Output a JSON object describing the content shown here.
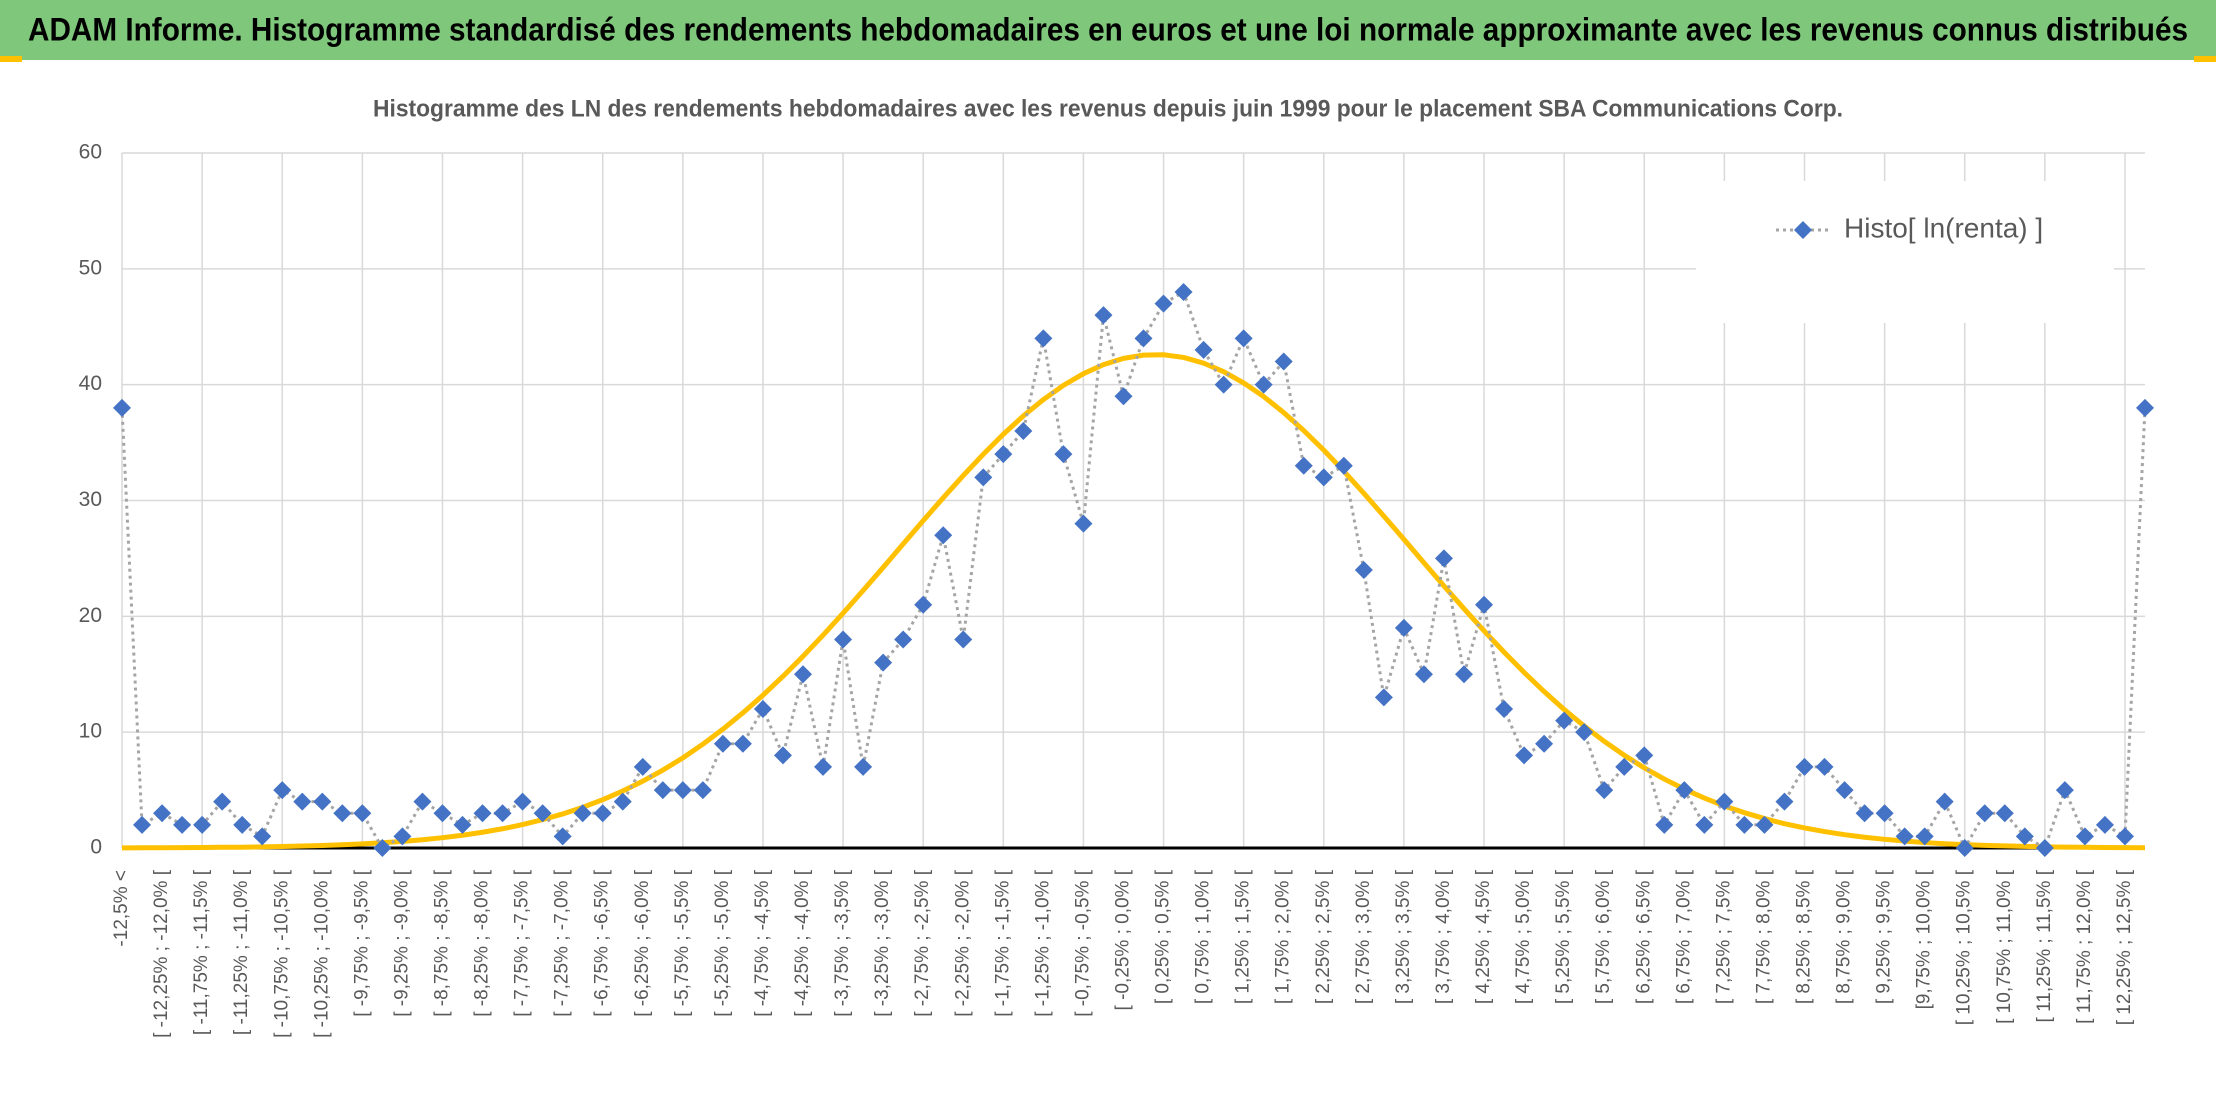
{
  "header": {
    "title": "ADAM Informe. Histogramme standardisé des rendements hebdomadaires en euros et une loi normale approximante avec les revenus connus distribués"
  },
  "chart_data": {
    "type": "line",
    "title": "Histogramme des LN des rendements hebdomadaires avec les revenus depuis juin 1999 pour le placement SBA Communications Corp.",
    "categories": [
      "-12,5% <",
      null,
      "[ -12,25% ; -12,0% [",
      null,
      "[ -11,75% ; -11,5% [",
      null,
      "[ -11,25% ; -11,0% [",
      null,
      "[ -10,75% ; -10,5% [",
      null,
      "[ -10,25% ; -10,0% [",
      null,
      "[ -9,75% ; -9,5% [",
      null,
      "[ -9,25% ; -9,0% [",
      null,
      "[ -8,75% ; -8,5% [",
      null,
      "[ -8,25% ; -8,0% [",
      null,
      "[ -7,75% ; -7,5% [",
      null,
      "[ -7,25% ; -7,0% [",
      null,
      "[ -6,75% ; -6,5% [",
      null,
      "[ -6,25% ; -6,0% [",
      null,
      "[ -5,75% ; -5,5% [",
      null,
      "[ -5,25% ; -5,0% [",
      null,
      "[ -4,75% ; -4,5% [",
      null,
      "[ -4,25% ; -4,0% [",
      null,
      "[ -3,75% ; -3,5% [",
      null,
      "[ -3,25% ; -3,0% [",
      null,
      "[ -2,75% ; -2,5% [",
      null,
      "[ -2,25% ; -2,0% [",
      null,
      "[ -1,75% ; -1,5% [",
      null,
      "[ -1,25% ; -1,0% [",
      null,
      "[ -0,75% ; -0,5% [",
      null,
      "[ -0,25% ; 0,0% [",
      null,
      "[ 0,25% ; 0,5% [",
      null,
      "[ 0,75% ; 1,0% [",
      null,
      "[ 1,25% ; 1,5% [",
      null,
      "[ 1,75% ; 2,0% [",
      null,
      "[ 2,25% ; 2,5% [",
      null,
      "[ 2,75% ; 3,0% [",
      null,
      "[ 3,25% ; 3,5% [",
      null,
      "[ 3,75% ; 4,0% [",
      null,
      "[ 4,25% ; 4,5% [",
      null,
      "[ 4,75% ; 5,0% [",
      null,
      "[ 5,25% ; 5,5% [",
      null,
      "[ 5,75% ; 6,0% [",
      null,
      "[ 6,25% ; 6,5% [",
      null,
      "[ 6,75% ; 7,0% [",
      null,
      "[ 7,25% ; 7,5% [",
      null,
      "[ 7,75% ; 8,0% [",
      null,
      "[ 8,25% ; 8,5% [",
      null,
      "[ 8,75% ; 9,0% [",
      null,
      "[ 9,25% ; 9,5% [",
      null,
      "[9,75% ; 10,0% [",
      null,
      "[ 10,25% ; 10,5% [",
      null,
      "[ 10,75% ; 11,0% [",
      null,
      "[ 11,25% ; 11,5% [",
      null,
      "[ 11,75% ; 12,0% [",
      null,
      "[ 12,25% ; 12,5% [",
      null
    ],
    "series": [
      {
        "name": "Histo[ ln(renta) ]",
        "color": "#4472c4",
        "line_color": "#a5a5a5",
        "values": [
          38,
          2,
          3,
          2,
          2,
          4,
          2,
          1,
          5,
          4,
          4,
          3,
          3,
          0,
          1,
          4,
          3,
          2,
          3,
          3,
          4,
          3,
          1,
          3,
          3,
          4,
          7,
          5,
          5,
          5,
          9,
          9,
          12,
          8,
          15,
          7,
          18,
          7,
          16,
          18,
          21,
          27,
          18,
          32,
          34,
          36,
          44,
          34,
          28,
          46,
          39,
          44,
          47,
          48,
          43,
          40,
          44,
          40,
          42,
          33,
          32,
          33,
          24,
          13,
          19,
          15,
          25,
          15,
          21,
          12,
          8,
          9,
          11,
          10,
          5,
          7,
          8,
          2,
          5,
          2,
          4,
          2,
          2,
          4,
          7,
          7,
          5,
          3,
          3,
          1,
          1,
          4,
          0,
          3,
          3,
          1,
          0,
          5,
          1,
          2,
          1,
          38
        ]
      },
      {
        "color": "#ffc000",
        "values": [
          0.01,
          0.02,
          0.02,
          0.03,
          0.04,
          0.06,
          0.07,
          0.1,
          0.13,
          0.17,
          0.22,
          0.28,
          0.36,
          0.45,
          0.57,
          0.71,
          0.89,
          1.1,
          1.36,
          1.66,
          2.02,
          2.45,
          2.94,
          3.51,
          4.17,
          4.92,
          5.77,
          6.72,
          7.78,
          8.96,
          10.26,
          11.67,
          13.19,
          14.82,
          16.55,
          18.37,
          20.27,
          22.23,
          24.22,
          26.24,
          28.26,
          30.23,
          32.15,
          33.99,
          35.72,
          37.3,
          38.71,
          39.94,
          40.95,
          41.73,
          42.27,
          42.55,
          42.58,
          42.35,
          41.86,
          41.12,
          40.15,
          38.97,
          37.59,
          36.04,
          34.35,
          32.53,
          30.62,
          28.65,
          26.65,
          24.63,
          22.62,
          20.66,
          18.75,
          16.91,
          15.16,
          13.51,
          11.96,
          10.53,
          9.21,
          8.01,
          6.92,
          5.95,
          5.08,
          4.31,
          3.63,
          3.05,
          2.54,
          2.1,
          1.73,
          1.42,
          1.15,
          0.93,
          0.75,
          0.6,
          0.47,
          0.37,
          0.29,
          0.23,
          0.18,
          0.14,
          0.1,
          0.08,
          0.06,
          0.04,
          0.03,
          0.02
        ]
      }
    ],
    "ylim": [
      0,
      60
    ],
    "yticks": [
      0,
      10,
      20,
      30,
      40,
      50,
      60
    ],
    "grid": true,
    "legend": "top-right"
  }
}
